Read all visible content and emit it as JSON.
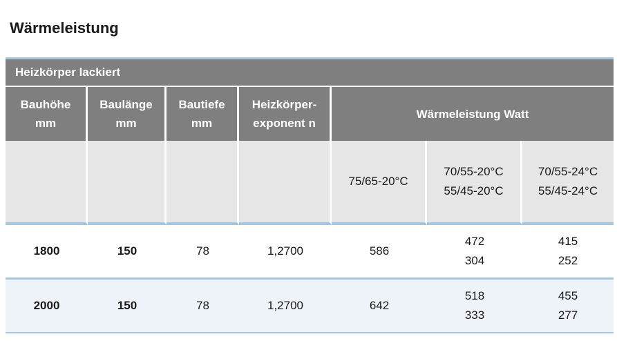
{
  "title": "Wärmeleistung",
  "caption": "Heizkörper lackiert",
  "headers": {
    "bauhoehe": [
      "Bauhöhe",
      "mm"
    ],
    "baulaenge": [
      "Baulänge",
      "mm"
    ],
    "bautiefe": [
      "Bautiefe",
      "mm"
    ],
    "exponent": [
      "Heizkörper-",
      "exponent n"
    ],
    "leistung": "Wärmeleistung Watt"
  },
  "subheaders": {
    "c1": [
      "75/65-20°C"
    ],
    "c2": [
      "70/55-20°C",
      "55/45-20°C"
    ],
    "c3": [
      "70/55-24°C",
      "55/45-24°C"
    ]
  },
  "rows": [
    {
      "bauhoehe": "1800",
      "baulaenge": "150",
      "bautiefe": "78",
      "exponent": "1,2700",
      "w1": "586",
      "w2": [
        "472",
        "304"
      ],
      "w3": [
        "415",
        "252"
      ]
    },
    {
      "bauhoehe": "2000",
      "baulaenge": "150",
      "bautiefe": "78",
      "exponent": "1,2700",
      "w1": "642",
      "w2": [
        "518",
        "333"
      ],
      "w3": [
        "455",
        "277"
      ]
    }
  ],
  "colors": {
    "header_bg": "#7f7f7f",
    "subheader_bg": "#e6e6e6",
    "accent_line": "#a9c5dc",
    "alt_row_bg": "#eef3f9"
  }
}
